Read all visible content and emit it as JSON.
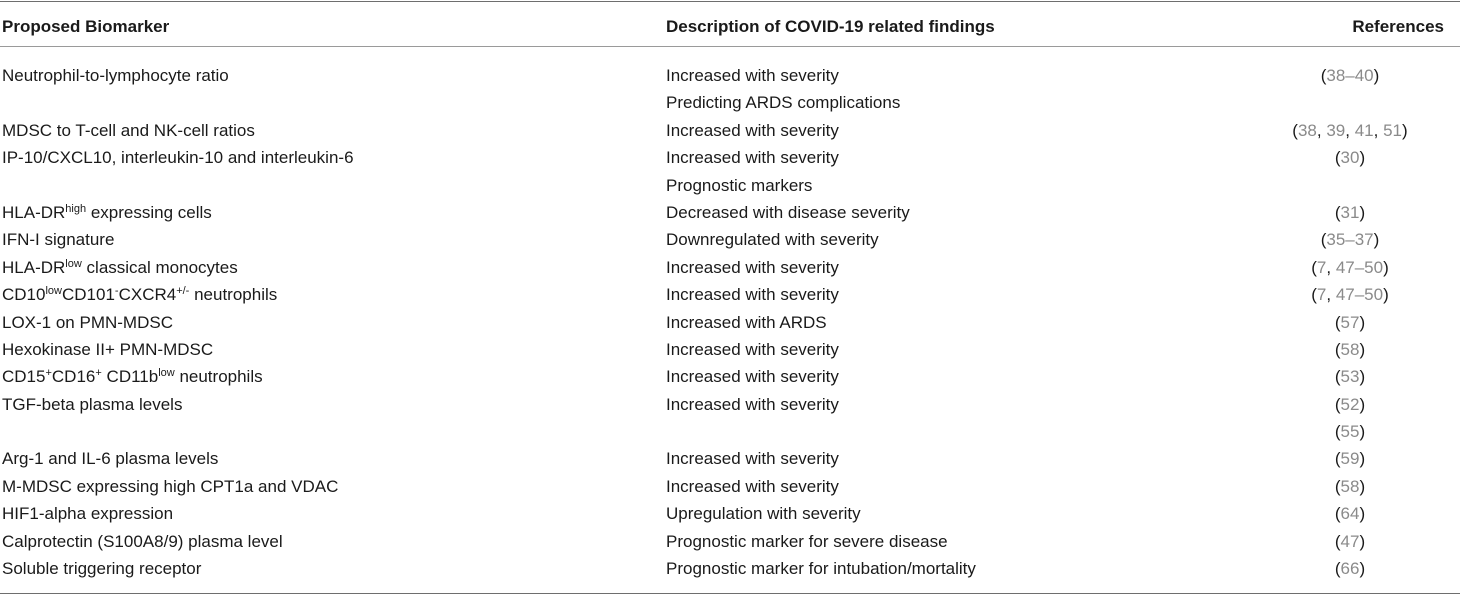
{
  "headers": {
    "biomarker": "Proposed Biomarker",
    "description": "Description of COVID-19 related findings",
    "references": "References"
  },
  "rows": [
    {
      "biomarker": [
        {
          "t": "Neutrophil-to-lymphocyte ratio"
        }
      ],
      "description": "Increased with severity",
      "refs": [
        "38–40"
      ]
    },
    {
      "biomarker": [],
      "description": "Predicting ARDS complications",
      "refs": []
    },
    {
      "biomarker": [
        {
          "t": "MDSC to T-cell and NK-cell ratios"
        }
      ],
      "description": "Increased with severity",
      "refs": [
        "38",
        "39",
        "41",
        "51"
      ]
    },
    {
      "biomarker": [
        {
          "t": "IP-10/CXCL10, interleukin-10 and interleukin-6"
        }
      ],
      "description": "Increased with severity",
      "refs": [
        "30"
      ]
    },
    {
      "biomarker": [],
      "description": "Prognostic markers",
      "refs": []
    },
    {
      "biomarker": [
        {
          "t": "HLA-DR"
        },
        {
          "t": "high",
          "sup": true
        },
        {
          "t": " expressing cells"
        }
      ],
      "description": "Decreased with disease severity",
      "refs": [
        "31"
      ]
    },
    {
      "biomarker": [
        {
          "t": "IFN-I signature"
        }
      ],
      "description": "Downregulated with severity",
      "refs": [
        "35–37"
      ]
    },
    {
      "biomarker": [
        {
          "t": "HLA-DR"
        },
        {
          "t": "low",
          "sup": true
        },
        {
          "t": " classical monocytes"
        }
      ],
      "description": "Increased with severity",
      "refs": [
        "7",
        "47–50"
      ]
    },
    {
      "biomarker": [
        {
          "t": "CD10"
        },
        {
          "t": "low",
          "sup": true
        },
        {
          "t": "CD101"
        },
        {
          "t": "-",
          "sup": true
        },
        {
          "t": "CXCR4"
        },
        {
          "t": "+/-",
          "sup": true
        },
        {
          "t": " neutrophils"
        }
      ],
      "description": "Increased with severity",
      "refs": [
        "7",
        "47–50"
      ]
    },
    {
      "biomarker": [
        {
          "t": "LOX-1 on PMN-MDSC"
        }
      ],
      "description": "Increased with ARDS",
      "refs": [
        "57"
      ]
    },
    {
      "biomarker": [
        {
          "t": "Hexokinase II+ PMN-MDSC"
        }
      ],
      "description": "Increased with severity",
      "refs": [
        "58"
      ]
    },
    {
      "biomarker": [
        {
          "t": "CD15"
        },
        {
          "t": "+",
          "sup": true
        },
        {
          "t": "CD16"
        },
        {
          "t": "+",
          "sup": true
        },
        {
          "t": " CD11b"
        },
        {
          "t": "low",
          "sup": true
        },
        {
          "t": " neutrophils"
        }
      ],
      "description": "Increased with severity",
      "refs": [
        "53"
      ]
    },
    {
      "biomarker": [
        {
          "t": "TGF-beta plasma levels"
        }
      ],
      "description": "Increased with severity",
      "refs": [
        "52"
      ]
    },
    {
      "biomarker": [],
      "description": "",
      "refs": [
        "55"
      ]
    },
    {
      "biomarker": [
        {
          "t": "Arg-1 and IL-6 plasma levels"
        }
      ],
      "description": "Increased with severity",
      "refs": [
        "59"
      ]
    },
    {
      "biomarker": [
        {
          "t": "M-MDSC expressing high CPT1a and VDAC"
        }
      ],
      "description": "Increased with severity",
      "refs": [
        "58"
      ]
    },
    {
      "biomarker": [
        {
          "t": "HIF1-alpha expression"
        }
      ],
      "description": "Upregulation with severity",
      "refs": [
        "64"
      ]
    },
    {
      "biomarker": [
        {
          "t": "Calprotectin (S100A8/9) plasma level"
        }
      ],
      "description": "Prognostic marker for severe disease",
      "refs": [
        "47"
      ]
    },
    {
      "biomarker": [
        {
          "t": "Soluble triggering receptor"
        }
      ],
      "description": "Prognostic marker for intubation/mortality",
      "refs": [
        "66"
      ]
    }
  ]
}
